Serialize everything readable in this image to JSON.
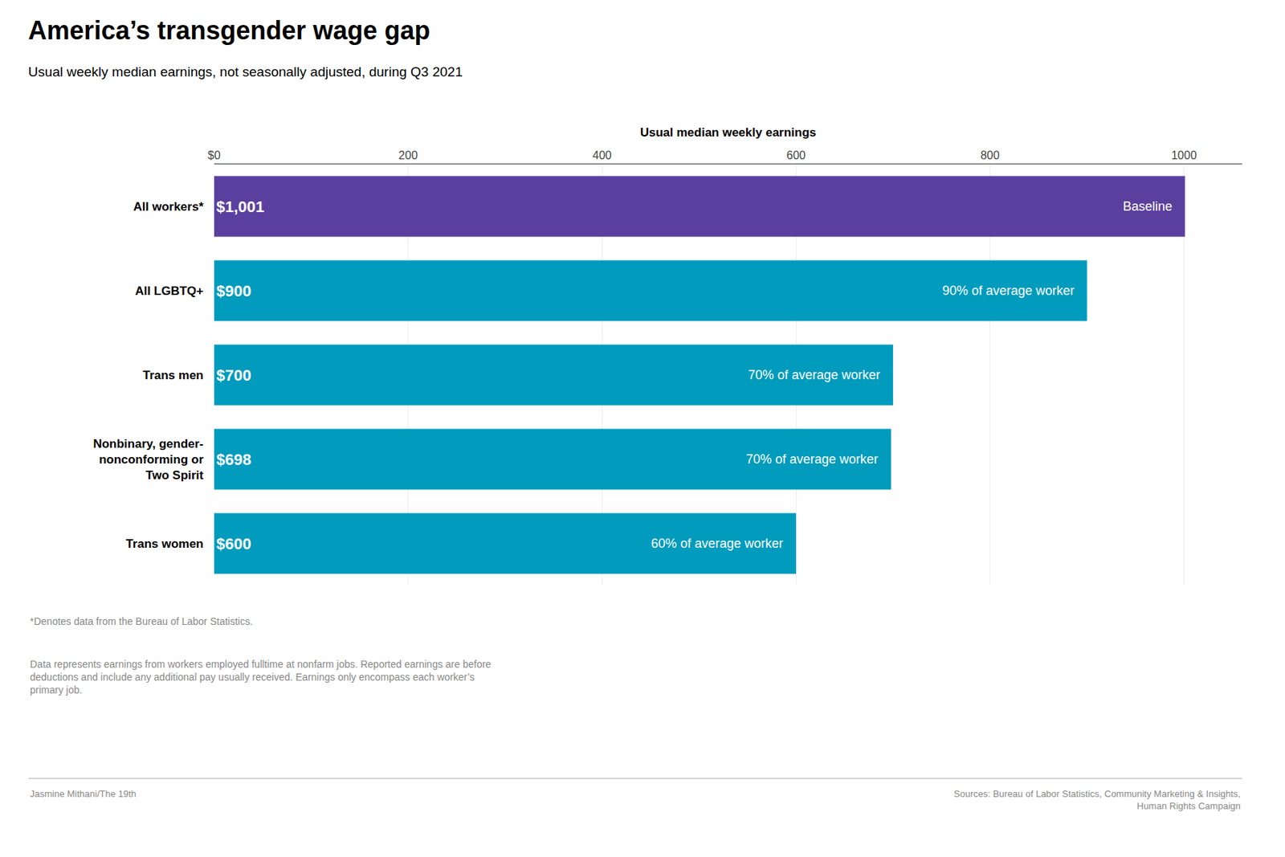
{
  "chart_data": {
    "type": "bar",
    "orientation": "horizontal",
    "title": "America’s transgender wage gap",
    "subtitle": "Usual weekly median earnings, not seasonally adjusted, during Q3 2021",
    "xlabel": "Usual median weekly earnings",
    "categories": [
      "All workers*",
      "All LGBTQ+",
      "Trans men",
      "Nonbinary, gender-\nnonconforming or\nTwo Spirit",
      "Trans women"
    ],
    "values": [
      1001,
      900,
      700,
      698,
      600
    ],
    "value_labels": [
      "$1,001",
      "$900",
      "$700",
      "$698",
      "$600"
    ],
    "data_labels": true,
    "colors": [
      "#5b3f9e",
      "#009bbd",
      "#009bbd",
      "#009bbd",
      "#009bbd"
    ],
    "annotations": [
      "Baseline",
      "90% of average worker",
      "70% of average worker",
      "70% of average worker",
      "60% of average worker"
    ],
    "xlim": [
      0,
      1060
    ],
    "xticks": [
      {
        "value": 0,
        "label": "$0"
      },
      200,
      400,
      600,
      800,
      1000
    ],
    "grid": true,
    "footnotes": [
      "*Denotes data from the Bureau of Labor Statistics.",
      "Data represents earnings from workers employed fulltime at nonfarm jobs. Reported earnings are before\ndeductions and include any additional pay usually received. Earnings only encompass each worker’s\nprimary job."
    ],
    "credit": "Jasmine Mithani/The 19th",
    "sources": "Sources: Bureau of Labor Statistics, Community Marketing & Insights,\nHuman Rights Campaign"
  }
}
